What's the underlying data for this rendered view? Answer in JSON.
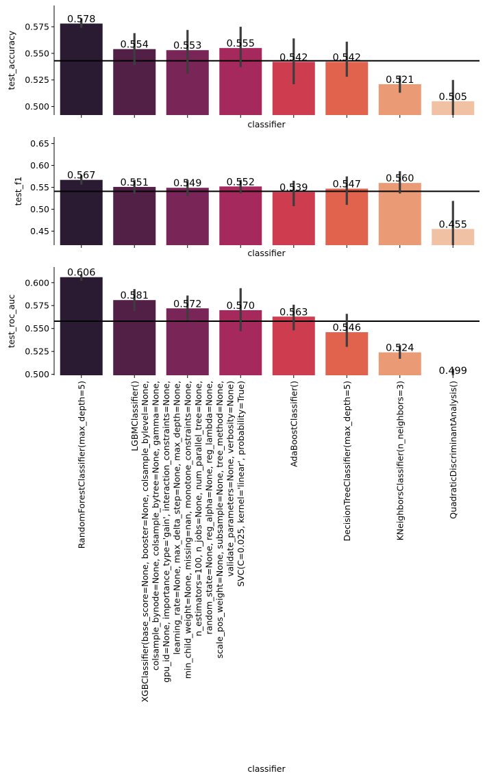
{
  "chart_data": {
    "type": "bar",
    "xlabel": "classifier",
    "categories": [
      "RandomForestClassifier(max_depth=5)",
      "LGBMClassifier()",
      "XGBClassifier(base_score=None, booster=None, colsample_bylevel=None,\ncolsample_bynode=None, colsample_bytree=None, gamma=None,\ngpu_id=None, importance_type='gain', interaction_constraints=None,\nlearning_rate=None, max_delta_step=None, max_depth=None,\nmin_child_weight=None, missing=nan, monotone_constraints=None,\nn_estimators=100, n_jobs=None, num_parallel_tree=None,\nrandom_state=None, reg_alpha=None, reg_lambda=None,\nscale_pos_weight=None, subsample=None, tree_method=None,\nvalidate_parameters=None, verbosity=None)",
      "SVC(C=0.025, kernel='linear', probability=True)",
      "AdaBoostClassifier()",
      "DecisionTreeClassifier(max_depth=5)",
      "KNeighborsClassifier(n_neighbors=3)",
      "QuadraticDiscriminantAnalysis()"
    ],
    "colors": [
      "#2a1a32",
      "#521f47",
      "#7a2558",
      "#a6295d",
      "#ce3c50",
      "#e2634d",
      "#ea9a74",
      "#f0c2a3"
    ],
    "panels": [
      {
        "ylabel": "test_accuracy",
        "ylim": [
          0.492,
          0.595
        ],
        "yticks": [
          0.5,
          0.525,
          0.55,
          0.575
        ],
        "ytick_labels": [
          "0.500",
          "0.525",
          "0.550",
          "0.575"
        ],
        "values": [
          0.578,
          0.554,
          0.553,
          0.555,
          0.542,
          0.542,
          0.521,
          0.505
        ],
        "value_labels": [
          "0.578",
          "0.554",
          "0.553",
          "0.555",
          "0.542",
          "0.542",
          "0.521",
          "0.505"
        ],
        "err_low": [
          0.574,
          0.539,
          0.531,
          0.537,
          0.521,
          0.528,
          0.513,
          0.492
        ],
        "err_high": [
          0.583,
          0.569,
          0.572,
          0.575,
          0.564,
          0.561,
          0.529,
          0.525
        ],
        "hline": 0.543
      },
      {
        "ylabel": "test_f1",
        "ylim": [
          0.418,
          0.665
        ],
        "yticks": [
          0.45,
          0.5,
          0.55,
          0.6,
          0.65
        ],
        "ytick_labels": [
          "0.45",
          "0.50",
          "0.55",
          "0.60",
          "0.65"
        ],
        "values": [
          0.567,
          0.551,
          0.549,
          0.552,
          0.539,
          0.547,
          0.56,
          0.455
        ],
        "value_labels": [
          "0.567",
          "0.551",
          "0.549",
          "0.552",
          "0.539",
          "0.547",
          "0.560",
          "0.455"
        ],
        "err_low": [
          0.556,
          0.535,
          0.53,
          0.536,
          0.507,
          0.51,
          0.536,
          0.418
        ],
        "err_high": [
          0.578,
          0.567,
          0.567,
          0.567,
          0.565,
          0.575,
          0.587,
          0.519
        ],
        "hline": 0.541
      },
      {
        "ylabel": "test_roc_auc",
        "ylim": [
          0.499,
          0.617
        ],
        "yticks": [
          0.5,
          0.525,
          0.55,
          0.575,
          0.6
        ],
        "ytick_labels": [
          "0.500",
          "0.525",
          "0.550",
          "0.575",
          "0.600"
        ],
        "values": [
          0.606,
          0.581,
          0.572,
          0.57,
          0.563,
          0.546,
          0.524,
          0.499
        ],
        "value_labels": [
          "0.606",
          "0.581",
          "0.572",
          "0.570",
          "0.563",
          "0.546",
          "0.524",
          "0.499"
        ],
        "err_low": [
          0.602,
          0.569,
          0.559,
          0.547,
          0.548,
          0.53,
          0.517,
          0.499
        ],
        "err_high": [
          0.609,
          0.593,
          0.586,
          0.594,
          0.576,
          0.566,
          0.532,
          0.506
        ],
        "hline": 0.558
      }
    ]
  }
}
